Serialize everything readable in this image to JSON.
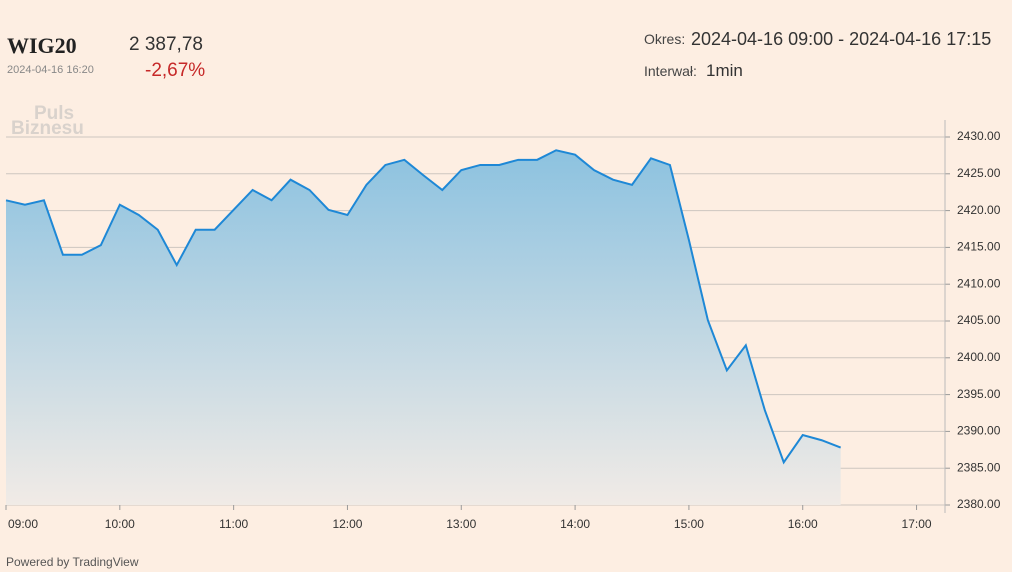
{
  "header": {
    "symbol": "WIG20",
    "price": "2 387,78",
    "datetime": "2024-04-16 16:20",
    "change": "-2,67%",
    "period_label": "Okres:",
    "period": "2024-04-16 09:00 - 2024-04-16 17:15",
    "interval_label": "Interwał:",
    "interval": "1min"
  },
  "watermark": [
    "Puls",
    "Biznesu"
  ],
  "footer": "Powered by TradingView",
  "chart_data": {
    "type": "area",
    "color": "#1e88d6",
    "grid": true,
    "x": [
      "09:00",
      "09:10",
      "09:20",
      "09:30",
      "09:40",
      "09:50",
      "10:00",
      "10:10",
      "10:20",
      "10:30",
      "10:40",
      "10:50",
      "11:00",
      "11:10",
      "11:20",
      "11:30",
      "11:40",
      "11:50",
      "12:00",
      "12:10",
      "12:20",
      "12:30",
      "12:40",
      "12:50",
      "13:00",
      "13:10",
      "13:20",
      "13:30",
      "13:40",
      "13:50",
      "14:00",
      "14:10",
      "14:20",
      "14:30",
      "14:40",
      "14:50",
      "15:00",
      "15:10",
      "15:20",
      "15:30",
      "15:40",
      "15:50",
      "16:00",
      "16:10",
      "16:20"
    ],
    "values": [
      2421.4,
      2420.8,
      2421.4,
      2414.0,
      2414.0,
      2415.3,
      2420.8,
      2419.4,
      2417.4,
      2412.6,
      2417.4,
      2417.4,
      2420.1,
      2422.8,
      2421.4,
      2424.2,
      2422.8,
      2420.1,
      2419.4,
      2423.5,
      2426.2,
      2426.9,
      2424.8,
      2422.8,
      2425.5,
      2426.2,
      2426.2,
      2426.9,
      2426.9,
      2428.2,
      2427.6,
      2425.5,
      2424.2,
      2423.5,
      2427.1,
      2426.2,
      2416.0,
      2405.1,
      2398.3,
      2401.7,
      2392.9,
      2385.8,
      2389.5,
      2388.8,
      2387.8
    ],
    "xlim": [
      "09:00",
      "17:15"
    ],
    "xticks": [
      "09:00",
      "10:00",
      "11:00",
      "12:00",
      "13:00",
      "14:00",
      "15:00",
      "16:00",
      "17:00"
    ],
    "ylim": [
      2380,
      2430
    ],
    "yticks": [
      {
        "value": 2430,
        "label": "2430.00"
      },
      {
        "value": 2425,
        "label": "2425.00"
      },
      {
        "value": 2420,
        "label": "2420.00"
      },
      {
        "value": 2415,
        "label": "2415.00"
      },
      {
        "value": 2410,
        "label": "2410.00"
      },
      {
        "value": 2405,
        "label": "2405.00"
      },
      {
        "value": 2400,
        "label": "2400.00"
      },
      {
        "value": 2395,
        "label": "2395.00"
      },
      {
        "value": 2390,
        "label": "2390.00"
      },
      {
        "value": 2385,
        "label": "2385.00"
      },
      {
        "value": 2380,
        "label": "2380.00"
      }
    ]
  }
}
